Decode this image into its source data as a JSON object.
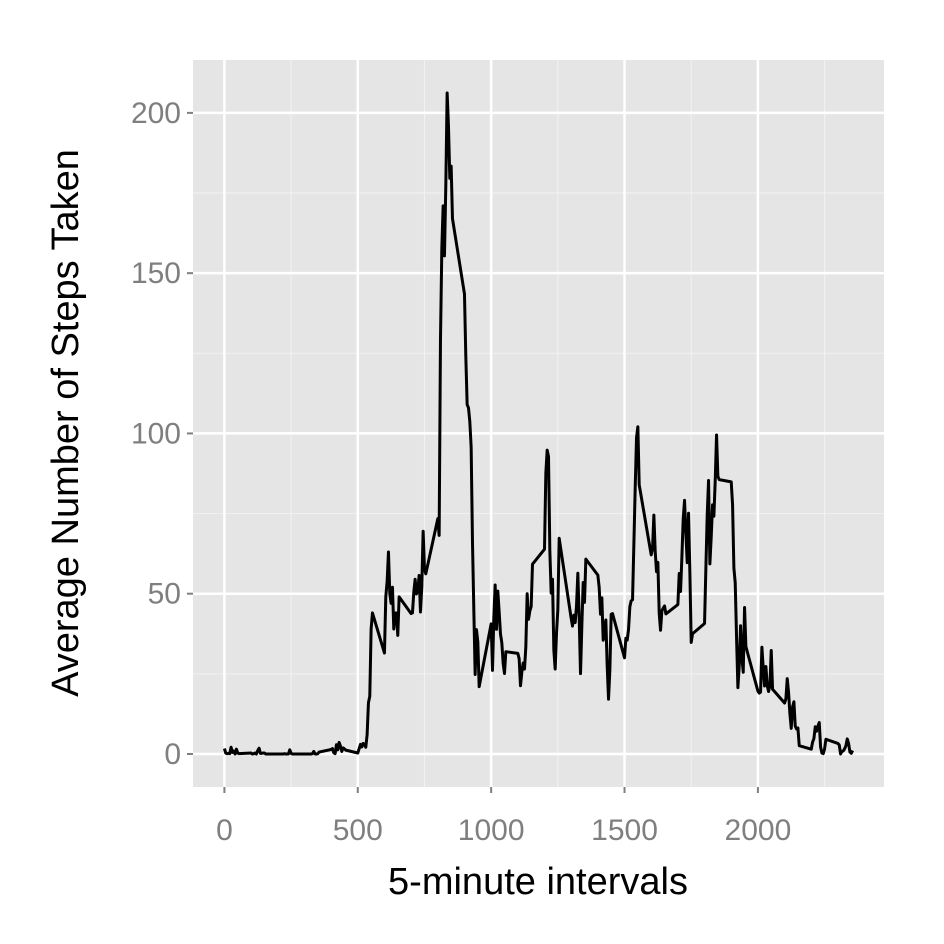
{
  "chart_data": {
    "type": "line",
    "x_label": "5-minute intervals",
    "y_label": "Average Number of Steps Taken",
    "x": [
      0,
      5,
      10,
      15,
      20,
      25,
      30,
      35,
      40,
      45,
      50,
      55,
      100,
      105,
      110,
      115,
      120,
      125,
      130,
      135,
      140,
      145,
      150,
      155,
      200,
      205,
      210,
      215,
      220,
      225,
      230,
      235,
      240,
      245,
      250,
      255,
      300,
      305,
      310,
      315,
      320,
      325,
      330,
      335,
      340,
      345,
      350,
      355,
      400,
      405,
      410,
      415,
      420,
      425,
      430,
      435,
      440,
      445,
      450,
      455,
      500,
      505,
      510,
      515,
      520,
      525,
      530,
      535,
      540,
      545,
      550,
      555,
      600,
      605,
      610,
      615,
      620,
      625,
      630,
      635,
      640,
      645,
      650,
      655,
      700,
      705,
      710,
      715,
      720,
      725,
      730,
      735,
      740,
      745,
      750,
      755,
      800,
      805,
      810,
      815,
      820,
      825,
      830,
      835,
      840,
      845,
      850,
      855,
      900,
      905,
      910,
      915,
      920,
      925,
      930,
      935,
      940,
      945,
      950,
      955,
      1000,
      1005,
      1010,
      1015,
      1020,
      1025,
      1030,
      1035,
      1040,
      1045,
      1050,
      1055,
      1100,
      1105,
      1110,
      1115,
      1120,
      1125,
      1130,
      1135,
      1140,
      1145,
      1150,
      1155,
      1200,
      1205,
      1210,
      1215,
      1220,
      1225,
      1230,
      1235,
      1240,
      1245,
      1250,
      1255,
      1300,
      1305,
      1310,
      1315,
      1320,
      1325,
      1330,
      1335,
      1340,
      1345,
      1350,
      1355,
      1400,
      1405,
      1410,
      1415,
      1420,
      1425,
      1430,
      1435,
      1440,
      1445,
      1450,
      1455,
      1500,
      1505,
      1510,
      1515,
      1520,
      1525,
      1530,
      1535,
      1540,
      1545,
      1550,
      1555,
      1600,
      1605,
      1610,
      1615,
      1620,
      1625,
      1630,
      1635,
      1640,
      1645,
      1650,
      1655,
      1700,
      1705,
      1710,
      1715,
      1720,
      1725,
      1730,
      1735,
      1740,
      1745,
      1750,
      1755,
      1800,
      1805,
      1810,
      1815,
      1820,
      1825,
      1830,
      1835,
      1840,
      1845,
      1850,
      1855,
      1900,
      1905,
      1910,
      1915,
      1920,
      1925,
      1930,
      1935,
      1940,
      1945,
      1950,
      1955,
      2000,
      2005,
      2010,
      2015,
      2020,
      2025,
      2030,
      2035,
      2040,
      2045,
      2050,
      2055,
      2100,
      2105,
      2110,
      2115,
      2120,
      2125,
      2130,
      2135,
      2140,
      2145,
      2150,
      2155,
      2200,
      2205,
      2210,
      2215,
      2220,
      2225,
      2230,
      2235,
      2240,
      2245,
      2250,
      2255,
      2300,
      2305,
      2310,
      2315,
      2320,
      2325,
      2330,
      2335,
      2340,
      2345,
      2350,
      2355
    ],
    "series": [
      {
        "color": "#000000",
        "values": [
          1.7,
          0.3,
          0.1,
          0.2,
          0.1,
          2.1,
          0.5,
          0.9,
          0,
          1.5,
          0.3,
          0.1,
          0.3,
          0,
          0.1,
          0.3,
          0,
          1.1,
          1.8,
          0.2,
          0.2,
          0.3,
          0.3,
          0,
          0,
          0,
          0,
          0,
          0,
          0.1,
          0,
          0,
          0,
          1.3,
          0.2,
          0,
          0,
          0,
          0,
          0,
          0,
          0,
          0.1,
          0.8,
          0,
          0,
          0.1,
          0.6,
          1.4,
          1.7,
          0.4,
          0.1,
          2.9,
          1.3,
          3.6,
          2.5,
          0.8,
          1.9,
          1.6,
          1.2,
          0.3,
          1.6,
          3,
          2.2,
          3.3,
          3,
          2.1,
          6,
          16,
          18,
          39,
          44,
          31.5,
          49,
          53.8,
          63,
          50,
          47,
          52,
          39,
          44,
          44,
          37,
          49,
          43.8,
          44,
          50.5,
          54.5,
          49.9,
          51,
          55.7,
          44.3,
          52.3,
          69.5,
          57.8,
          56.2,
          73.4,
          68.2,
          129,
          157.5,
          171,
          155.4,
          177.3,
          206.2,
          195.9,
          179.6,
          183.4,
          167,
          143.5,
          124,
          109,
          108,
          103.7,
          95.7,
          66.2,
          45.2,
          24.8,
          38.8,
          35,
          21,
          40.6,
          26.1,
          42.4,
          52.7,
          38.9,
          50.8,
          44.3,
          37.4,
          34.7,
          28.3,
          25.1,
          31.9,
          31.4,
          29.7,
          21.3,
          25.5,
          28.4,
          26.5,
          33.4,
          49.98,
          42,
          44.6,
          46,
          59.2,
          63.9,
          87.6,
          94.8,
          92.8,
          63.4,
          50.2,
          54.5,
          32.4,
          26.5,
          37.7,
          45,
          67.3,
          42.3,
          39.9,
          43.3,
          40.98,
          46.2,
          56.4,
          42.8,
          25.1,
          39.97,
          53.5,
          47.3,
          60.8,
          55.8,
          51.96,
          43.6,
          48.7,
          35.5,
          37.5,
          41.8,
          27.5,
          17.1,
          26.1,
          43.6,
          43.8,
          30,
          36.1,
          35.5,
          38.8,
          45.96,
          47.8,
          48.1,
          65.3,
          82.9,
          98.7,
          102.1,
          84,
          62.1,
          64.1,
          74.5,
          63.2,
          56.9,
          59.8,
          43.9,
          38.6,
          44.7,
          45.5,
          46.2,
          43.7,
          46.6,
          56.3,
          50.7,
          61.2,
          73.4,
          79.1,
          68.9,
          59.7,
          75.1,
          56.5,
          34.8,
          37.5,
          40.7,
          58,
          74.7,
          85.3,
          59.3,
          67.8,
          77.7,
          74.2,
          85.3,
          99.5,
          86.6,
          85.6,
          84.9,
          77.8,
          58,
          53.4,
          36.3,
          20.7,
          27.4,
          40,
          30.2,
          25.5,
          45.7,
          33.5,
          19.6,
          19,
          19.3,
          33.3,
          26.8,
          21.2,
          27.3,
          21.3,
          19.5,
          21.3,
          32.3,
          20.2,
          15.9,
          17.2,
          23.5,
          19.2,
          12.5,
          8,
          14.7,
          16.3,
          8.7,
          7.8,
          8.1,
          2.6,
          1.5,
          3.7,
          4.8,
          8.5,
          7.1,
          8.7,
          9.8,
          2.2,
          0.3,
          0.1,
          1.6,
          4.6,
          3.3,
          2.8,
          0,
          0.8,
          0.96,
          1.6,
          2.6,
          4.7,
          3.3,
          0.6,
          0.2,
          1.1
        ]
      }
    ],
    "xlim": [
      -117.75,
      2472.75
    ],
    "ylim": [
      -10.3,
      216.5
    ],
    "xticks": [
      0,
      500,
      1000,
      1500,
      2000
    ],
    "yticks": [
      0,
      50,
      100,
      150,
      200
    ],
    "grid": true
  }
}
